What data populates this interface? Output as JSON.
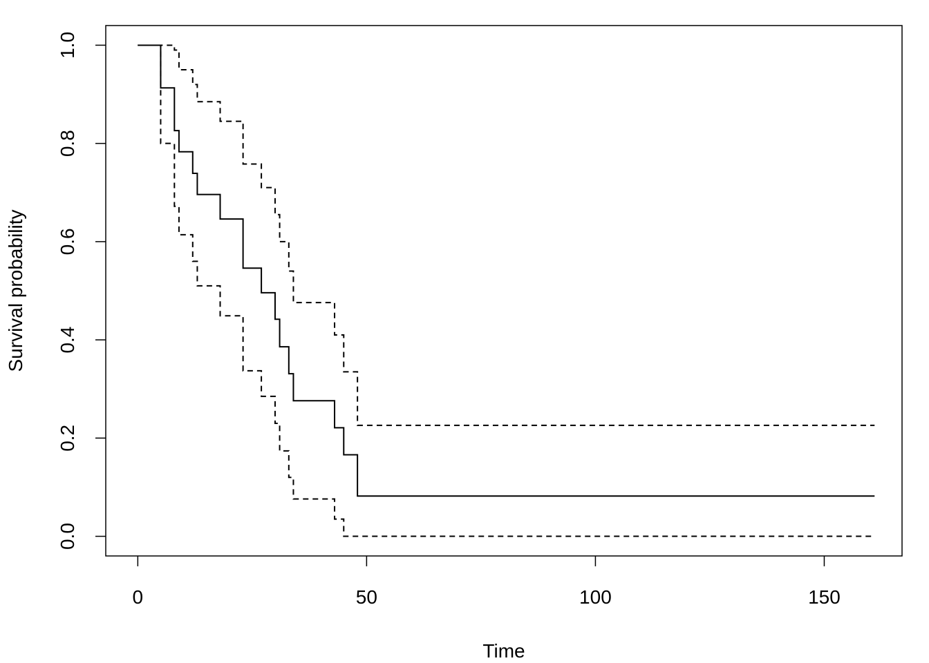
{
  "chart_data": {
    "type": "line",
    "title": "",
    "xlabel": "Time",
    "ylabel": "Survival probability",
    "xlim": [
      -7,
      167
    ],
    "ylim": [
      -0.04,
      1.04
    ],
    "xticks": [
      0,
      50,
      100,
      150
    ],
    "xtick_labels": [
      "0",
      "50",
      "100",
      "150"
    ],
    "yticks": [
      0.0,
      0.2,
      0.4,
      0.6,
      0.8,
      1.0
    ],
    "ytick_labels": [
      "0.0",
      "0.2",
      "0.4",
      "0.6",
      "0.8",
      "1.0"
    ],
    "grid": false,
    "legend": "none",
    "series": [
      {
        "key": "survival-curve",
        "style": "solid",
        "x": [
          0,
          5,
          8,
          9,
          12,
          13,
          18,
          23,
          27,
          30,
          31,
          33,
          34,
          43,
          45,
          48,
          161
        ],
        "y": [
          1.0,
          0.913,
          0.826,
          0.783,
          0.739,
          0.696,
          0.646,
          0.546,
          0.496,
          0.442,
          0.386,
          0.331,
          0.276,
          0.221,
          0.166,
          0.082,
          0.082
        ]
      },
      {
        "key": "upper-confidence-band",
        "style": "dashed",
        "x": [
          0,
          7,
          8,
          9,
          12,
          13,
          18,
          23,
          27,
          30,
          31,
          33,
          34,
          43,
          45,
          48,
          161
        ],
        "y": [
          1.0,
          1.0,
          0.99,
          0.95,
          0.92,
          0.885,
          0.845,
          0.758,
          0.71,
          0.655,
          0.6,
          0.54,
          0.476,
          0.41,
          0.335,
          0.226,
          0.226
        ]
      },
      {
        "key": "lower-confidence-band",
        "style": "dashed",
        "x": [
          0,
          5,
          8,
          9,
          12,
          13,
          18,
          23,
          27,
          30,
          31,
          33,
          34,
          43,
          44,
          45,
          161
        ],
        "y": [
          1.0,
          0.8,
          0.672,
          0.614,
          0.56,
          0.51,
          0.449,
          0.337,
          0.285,
          0.23,
          0.174,
          0.12,
          0.076,
          0.035,
          0.035,
          0.0,
          0.0
        ]
      }
    ]
  }
}
